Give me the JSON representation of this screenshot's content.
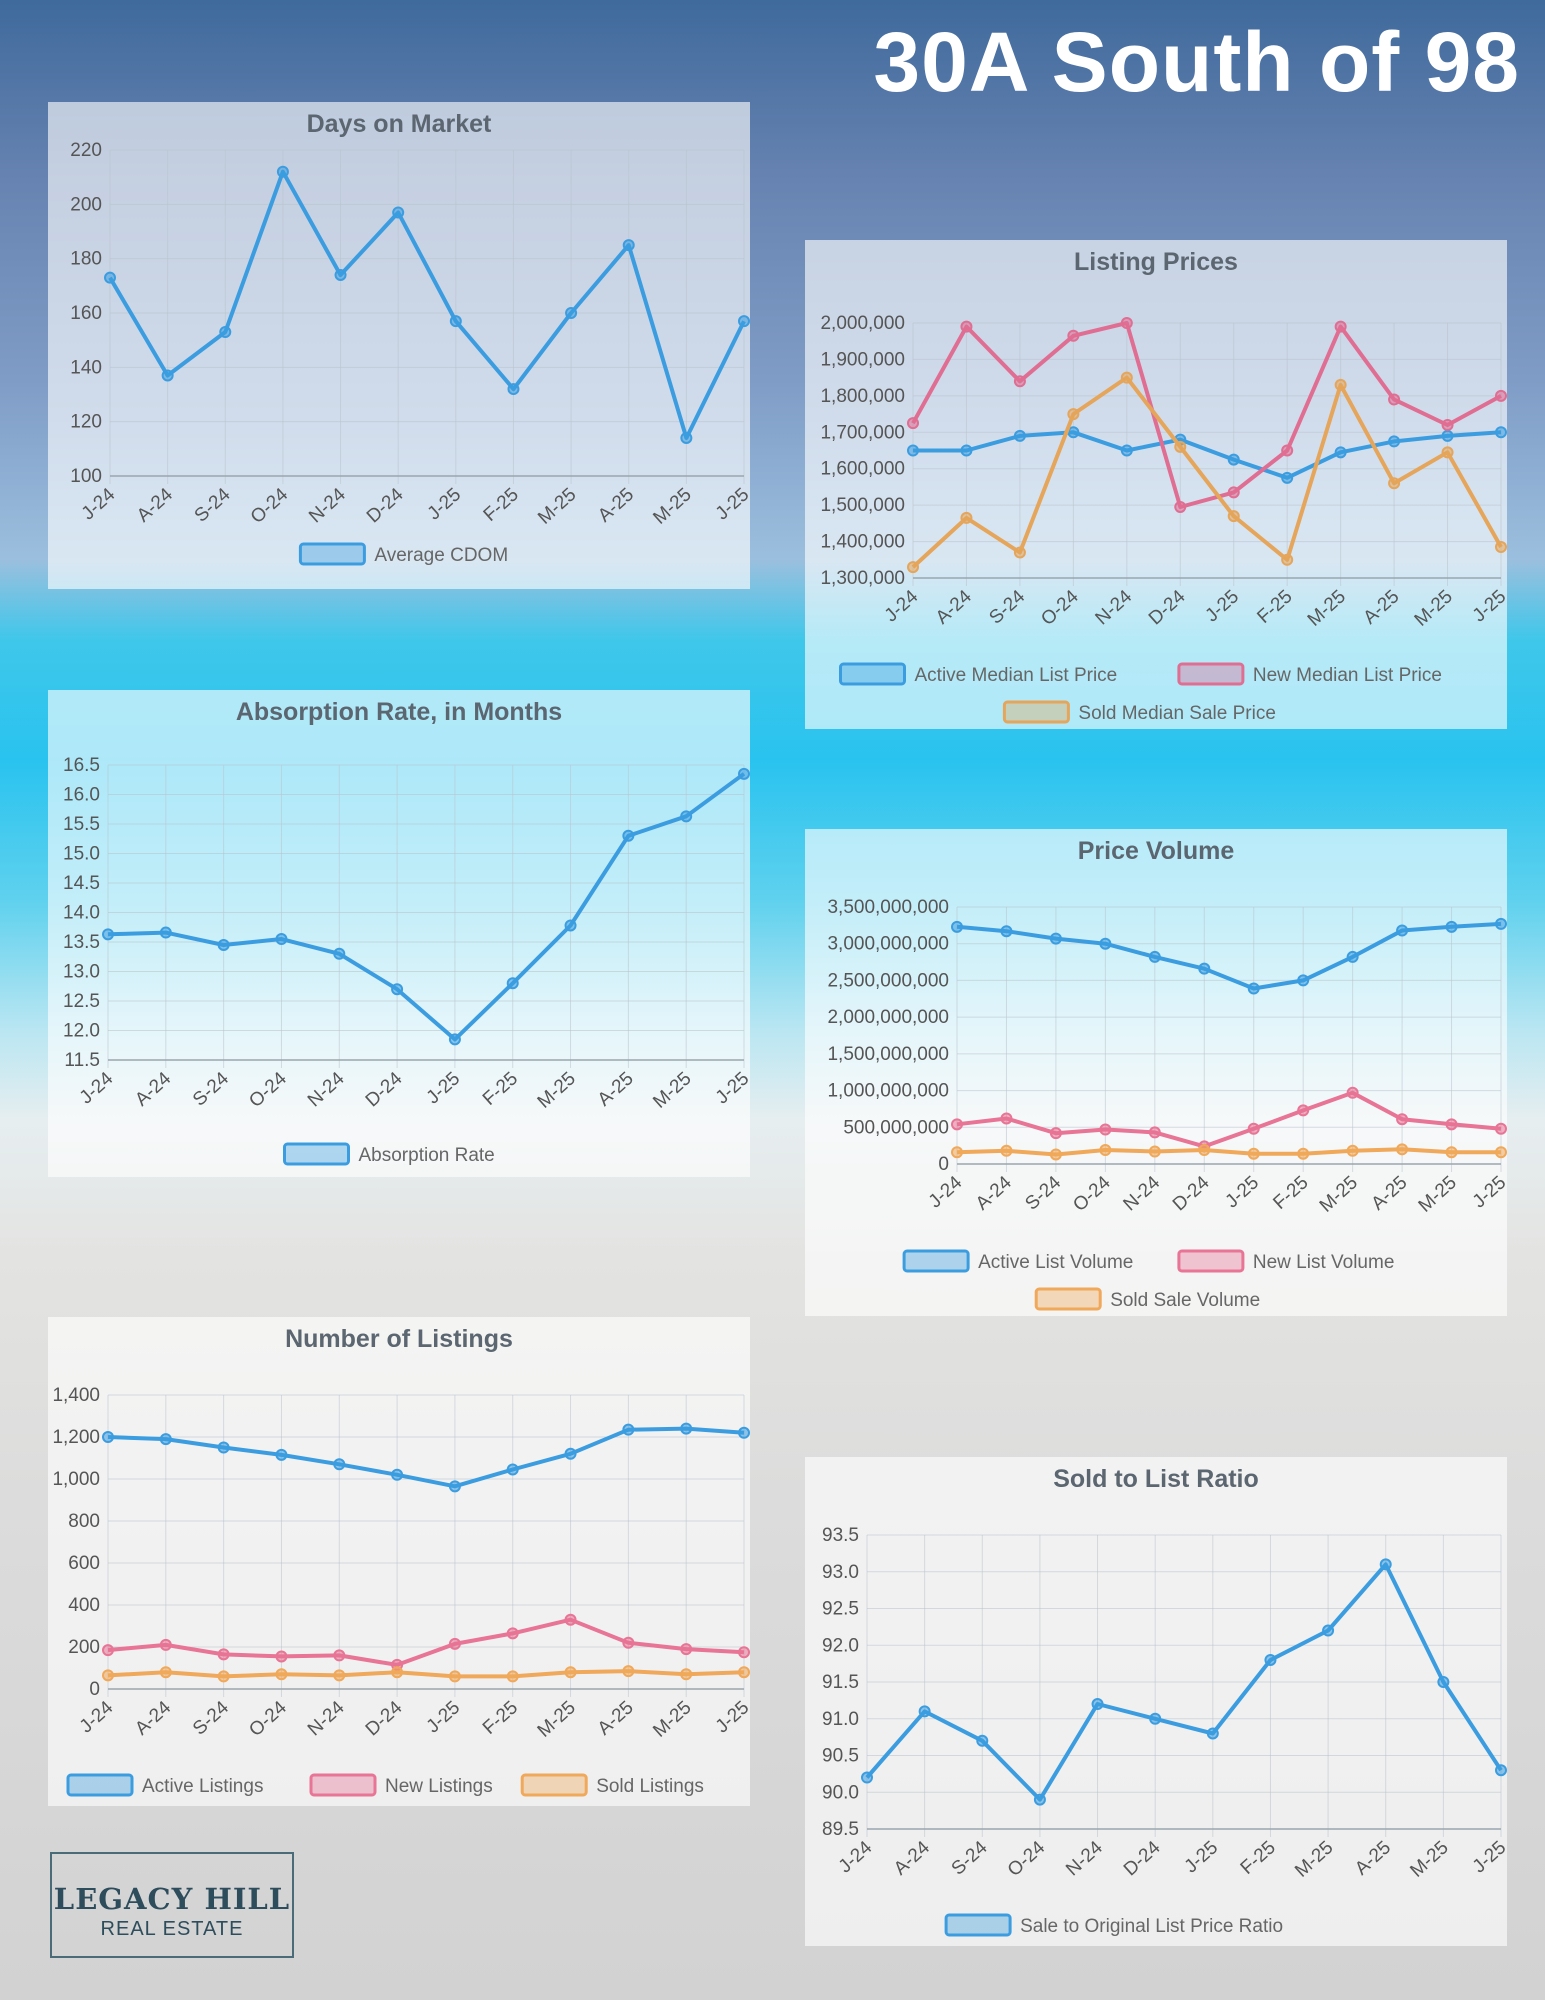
{
  "page_title": "30A South of 98",
  "logo": {
    "name": "LEGACY HILL",
    "subtitle": "REAL ESTATE"
  },
  "chart_data": [
    {
      "id": "days-on-market",
      "type": "line",
      "title": "Days on Market",
      "categories": [
        "J-24",
        "A-24",
        "S-24",
        "O-24",
        "N-24",
        "D-24",
        "J-25",
        "F-25",
        "M-25",
        "A-25",
        "M-25",
        "J-25"
      ],
      "ylim": [
        100,
        220
      ],
      "yticks": [
        100,
        120,
        140,
        160,
        180,
        200,
        220
      ],
      "tick_labels": [
        "100",
        "120",
        "140",
        "160",
        "180",
        "200",
        "220"
      ],
      "series": [
        {
          "name": "Average CDOM",
          "color": "#3b9de0",
          "values": [
            173,
            137,
            153,
            212,
            174,
            197,
            157,
            132,
            160,
            185,
            114,
            157
          ]
        }
      ]
    },
    {
      "id": "listing-prices",
      "type": "line",
      "title": "Listing Prices",
      "categories": [
        "J-24",
        "A-24",
        "S-24",
        "O-24",
        "N-24",
        "D-24",
        "J-25",
        "F-25",
        "M-25",
        "A-25",
        "M-25",
        "J-25"
      ],
      "ylim": [
        1300000,
        2000000
      ],
      "yticks": [
        1300000,
        1400000,
        1500000,
        1600000,
        1700000,
        1800000,
        1900000,
        2000000
      ],
      "tick_labels": [
        "1,300,000",
        "1,400,000",
        "1,500,000",
        "1,600,000",
        "1,700,000",
        "1,800,000",
        "1,900,000",
        "2,000,000"
      ],
      "series": [
        {
          "name": "Active Median List Price",
          "color": "#3b9de0",
          "values": [
            1650000,
            1650000,
            1690000,
            1700000,
            1650000,
            1680000,
            1625000,
            1575000,
            1645000,
            1675000,
            1690000,
            1700000
          ]
        },
        {
          "name": "New Median List Price",
          "color": "#e06d92",
          "values": [
            1725000,
            1990000,
            1840000,
            1965000,
            2000000,
            1495000,
            1535000,
            1650000,
            1990000,
            1790000,
            1720000,
            1800000
          ]
        },
        {
          "name": "Sold Median Sale Price",
          "color": "#e5a55a",
          "values": [
            1330000,
            1465000,
            1370000,
            1750000,
            1850000,
            1660000,
            1470000,
            1350000,
            1830000,
            1560000,
            1645000,
            1385000
          ]
        }
      ]
    },
    {
      "id": "absorption-rate",
      "type": "line",
      "title": "Absorption Rate, in Months",
      "categories": [
        "J-24",
        "A-24",
        "S-24",
        "O-24",
        "N-24",
        "D-24",
        "J-25",
        "F-25",
        "M-25",
        "A-25",
        "M-25",
        "J-25"
      ],
      "ylim": [
        11.5,
        16.5
      ],
      "yticks": [
        11.5,
        12,
        12.5,
        13,
        13.5,
        14,
        14.5,
        15,
        15.5,
        16,
        16.5
      ],
      "tick_labels": [
        "11.5",
        "12.0",
        "12.5",
        "13.0",
        "13.5",
        "14.0",
        "14.5",
        "15.0",
        "15.5",
        "16.0",
        "16.5"
      ],
      "series": [
        {
          "name": "Absorption Rate",
          "color": "#3b9de0",
          "values": [
            13.63,
            13.66,
            13.45,
            13.55,
            13.3,
            12.7,
            11.85,
            12.8,
            13.78,
            15.3,
            15.63,
            16.35
          ]
        }
      ]
    },
    {
      "id": "price-volume",
      "type": "line",
      "title": "Price Volume",
      "categories": [
        "J-24",
        "A-24",
        "S-24",
        "O-24",
        "N-24",
        "D-24",
        "J-25",
        "F-25",
        "M-25",
        "A-25",
        "M-25",
        "J-25"
      ],
      "ylim": [
        0,
        3500000000
      ],
      "yticks": [
        0,
        500000000,
        1000000000,
        1500000000,
        2000000000,
        2500000000,
        3000000000,
        3500000000
      ],
      "tick_labels": [
        "0",
        "500,000,000",
        "1,000,000,000",
        "1,500,000,000",
        "2,000,000,000",
        "2,500,000,000",
        "3,000,000,000",
        "3,500,000,000"
      ],
      "series": [
        {
          "name": "Active List Volume",
          "color": "#3b9de0",
          "values": [
            3230000000,
            3170000000,
            3070000000,
            3000000000,
            2820000000,
            2660000000,
            2390000000,
            2500000000,
            2820000000,
            3180000000,
            3230000000,
            3270000000
          ]
        },
        {
          "name": "New List Volume",
          "color": "#e87496",
          "values": [
            540000000,
            620000000,
            420000000,
            470000000,
            430000000,
            240000000,
            480000000,
            730000000,
            970000000,
            610000000,
            540000000,
            480000000
          ]
        },
        {
          "name": "Sold Sale Volume",
          "color": "#f0a85a",
          "values": [
            160000000,
            180000000,
            130000000,
            190000000,
            170000000,
            190000000,
            140000000,
            140000000,
            180000000,
            200000000,
            160000000,
            160000000
          ]
        }
      ]
    },
    {
      "id": "number-of-listings",
      "type": "line",
      "title": "Number of Listings",
      "categories": [
        "J-24",
        "A-24",
        "S-24",
        "O-24",
        "N-24",
        "D-24",
        "J-25",
        "F-25",
        "M-25",
        "A-25",
        "M-25",
        "J-25"
      ],
      "ylim": [
        0,
        1400
      ],
      "yticks": [
        0,
        200,
        400,
        600,
        800,
        1000,
        1200,
        1400
      ],
      "tick_labels": [
        "0",
        "200",
        "400",
        "600",
        "800",
        "1,000",
        "1,200",
        "1,400"
      ],
      "series": [
        {
          "name": "Active Listings",
          "color": "#3b9de0",
          "values": [
            1200,
            1190,
            1150,
            1115,
            1070,
            1020,
            965,
            1045,
            1120,
            1235,
            1240,
            1220
          ]
        },
        {
          "name": "New Listings",
          "color": "#e87496",
          "values": [
            185,
            210,
            165,
            155,
            160,
            115,
            215,
            265,
            330,
            220,
            190,
            175
          ]
        },
        {
          "name": "Sold Listings",
          "color": "#f0a85a",
          "values": [
            65,
            80,
            60,
            70,
            65,
            80,
            60,
            60,
            80,
            85,
            70,
            80
          ]
        }
      ]
    },
    {
      "id": "sold-to-list-ratio",
      "type": "line",
      "title": "Sold to List Ratio",
      "categories": [
        "J-24",
        "A-24",
        "S-24",
        "O-24",
        "N-24",
        "D-24",
        "J-25",
        "F-25",
        "M-25",
        "A-25",
        "M-25",
        "J-25"
      ],
      "ylim": [
        89.5,
        93.5
      ],
      "yticks": [
        89.5,
        90,
        90.5,
        91,
        91.5,
        92,
        92.5,
        93,
        93.5
      ],
      "tick_labels": [
        "89.5",
        "90.0",
        "90.5",
        "91.0",
        "91.5",
        "92.0",
        "92.5",
        "93.0",
        "93.5"
      ],
      "series": [
        {
          "name": "Sale to Original List Price Ratio",
          "color": "#3b9de0",
          "values": [
            90.2,
            91.1,
            90.7,
            89.9,
            91.2,
            91.0,
            90.8,
            91.8,
            92.2,
            93.1,
            91.5,
            90.3
          ]
        }
      ]
    }
  ]
}
